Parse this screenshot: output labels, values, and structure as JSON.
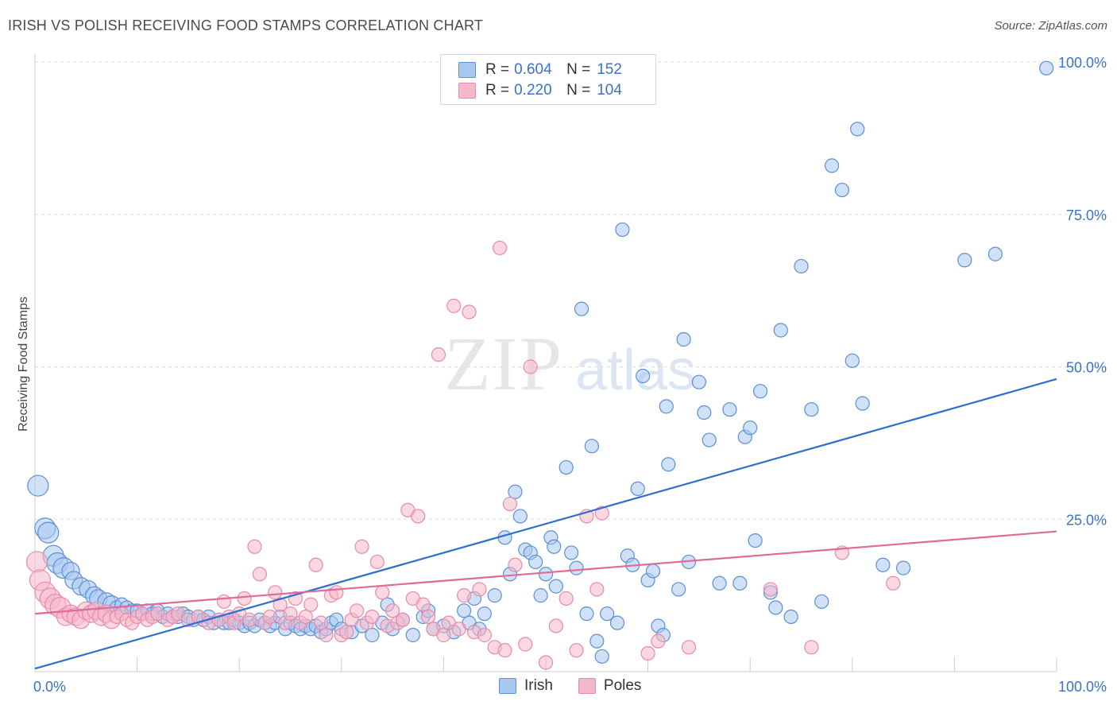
{
  "title": "IRISH VS POLISH RECEIVING FOOD STAMPS CORRELATION CHART",
  "source": "Source: ZipAtlas.com",
  "colors": {
    "irish_fill": "#a9c8f0",
    "irish_stroke": "#5b8fd6",
    "irish_line": "#2c6fd0",
    "poles_fill": "#f5b8cb",
    "poles_stroke": "#e88aa8",
    "poles_line": "#e06a98",
    "grid": "#dddddd",
    "tick_label": "#3a72c8"
  },
  "legend": {
    "rows": [
      {
        "r_label": "R =",
        "r_value": "0.604",
        "n_label": "N =",
        "n_value": "152"
      },
      {
        "r_label": "R =",
        "r_value": "0.220",
        "n_label": "N =",
        "n_value": "104"
      }
    ]
  },
  "chart_data": {
    "type": "scatter",
    "title": "IRISH VS POLISH RECEIVING FOOD STAMPS CORRELATION CHART",
    "xlabel": "",
    "ylabel": "Receiving Food Stamps",
    "xlim": [
      0,
      100
    ],
    "ylim": [
      0,
      100
    ],
    "x_tick_labels": [
      "0.0%",
      "100.0%"
    ],
    "y_tick_labels": [
      "25.0%",
      "50.0%",
      "75.0%",
      "100.0%"
    ],
    "y_ticks": [
      25,
      50,
      75,
      100
    ],
    "grid": true,
    "legend_position": "top-center",
    "series": [
      {
        "name": "Irish",
        "trend": {
          "x": [
            0,
            100
          ],
          "y": [
            0.5,
            48
          ]
        },
        "points": [
          [
            0.3,
            30.5
          ],
          [
            1,
            23.5
          ],
          [
            1.3,
            22.8
          ],
          [
            1.8,
            19
          ],
          [
            2.2,
            17.8
          ],
          [
            2.8,
            17
          ],
          [
            3.5,
            16.5
          ],
          [
            3.8,
            15
          ],
          [
            4.5,
            14
          ],
          [
            5.2,
            13.5
          ],
          [
            5.8,
            12.5
          ],
          [
            6.2,
            12
          ],
          [
            7,
            11.5
          ],
          [
            7.5,
            11
          ],
          [
            8,
            10.5
          ],
          [
            8.5,
            11
          ],
          [
            9,
            10.5
          ],
          [
            9.5,
            10
          ],
          [
            10,
            10
          ],
          [
            10.5,
            9.5
          ],
          [
            11,
            10
          ],
          [
            11.5,
            9.5
          ],
          [
            12,
            10
          ],
          [
            12.5,
            9
          ],
          [
            13,
            9.5
          ],
          [
            13.5,
            9
          ],
          [
            14,
            9
          ],
          [
            14.5,
            9.5
          ],
          [
            15,
            9
          ],
          [
            15.5,
            8.5
          ],
          [
            16,
            9
          ],
          [
            16.5,
            8.5
          ],
          [
            17,
            9
          ],
          [
            17.5,
            8
          ],
          [
            18,
            8.5
          ],
          [
            18.5,
            8
          ],
          [
            19,
            8
          ],
          [
            19.5,
            8.5
          ],
          [
            20,
            8
          ],
          [
            20.5,
            7.5
          ],
          [
            21,
            8
          ],
          [
            21.5,
            7.5
          ],
          [
            22,
            8.5
          ],
          [
            22.5,
            8
          ],
          [
            23,
            7.5
          ],
          [
            23.5,
            8
          ],
          [
            24,
            9
          ],
          [
            24.5,
            7
          ],
          [
            25,
            8
          ],
          [
            25.5,
            7.5
          ],
          [
            26,
            7
          ],
          [
            26.5,
            7.5
          ],
          [
            27,
            7
          ],
          [
            27.5,
            7.5
          ],
          [
            28,
            6.5
          ],
          [
            28.5,
            7
          ],
          [
            29,
            8
          ],
          [
            29.5,
            8.5
          ],
          [
            30,
            7
          ],
          [
            31,
            6.5
          ],
          [
            32,
            7.5
          ],
          [
            33,
            6
          ],
          [
            34,
            8
          ],
          [
            34.5,
            11
          ],
          [
            35,
            7
          ],
          [
            36,
            8.5
          ],
          [
            37,
            6
          ],
          [
            38,
            9
          ],
          [
            38.5,
            10
          ],
          [
            39,
            7
          ],
          [
            40,
            7.5
          ],
          [
            41,
            6.5
          ],
          [
            42,
            10
          ],
          [
            42.5,
            8
          ],
          [
            43,
            12
          ],
          [
            43.5,
            7
          ],
          [
            44,
            9.5
          ],
          [
            45,
            12.5
          ],
          [
            46,
            22
          ],
          [
            46.5,
            16
          ],
          [
            47,
            29.5
          ],
          [
            47.5,
            25.5
          ],
          [
            48,
            20
          ],
          [
            48.5,
            19.5
          ],
          [
            49,
            18
          ],
          [
            49.5,
            12.5
          ],
          [
            50,
            16
          ],
          [
            50.5,
            22
          ],
          [
            50.8,
            20.5
          ],
          [
            51,
            14
          ],
          [
            52,
            33.5
          ],
          [
            52.5,
            19.5
          ],
          [
            53,
            17
          ],
          [
            53.5,
            59.5
          ],
          [
            54,
            9.5
          ],
          [
            54.5,
            37
          ],
          [
            55,
            5
          ],
          [
            55.5,
            2.5
          ],
          [
            56,
            9.5
          ],
          [
            57,
            8
          ],
          [
            57.5,
            72.5
          ],
          [
            58,
            19
          ],
          [
            58.5,
            17.5
          ],
          [
            59,
            30
          ],
          [
            59.5,
            48.5
          ],
          [
            60,
            15
          ],
          [
            60.5,
            16.5
          ],
          [
            61,
            7.5
          ],
          [
            61.5,
            6
          ],
          [
            61.8,
            43.5
          ],
          [
            62,
            34
          ],
          [
            63,
            13.5
          ],
          [
            63.5,
            54.5
          ],
          [
            64,
            18
          ],
          [
            65,
            47.5
          ],
          [
            65.5,
            42.5
          ],
          [
            66,
            38
          ],
          [
            67,
            14.5
          ],
          [
            68,
            43
          ],
          [
            69,
            14.5
          ],
          [
            69.5,
            38.5
          ],
          [
            70,
            40
          ],
          [
            70.5,
            21.5
          ],
          [
            71,
            46
          ],
          [
            72,
            13
          ],
          [
            72.5,
            10.5
          ],
          [
            73,
            56
          ],
          [
            74,
            9
          ],
          [
            75,
            66.5
          ],
          [
            76,
            43
          ],
          [
            77,
            11.5
          ],
          [
            78,
            83
          ],
          [
            79,
            79
          ],
          [
            80,
            51
          ],
          [
            80.5,
            89
          ],
          [
            81,
            44
          ],
          [
            83,
            17.5
          ],
          [
            85,
            17
          ],
          [
            91,
            67.5
          ],
          [
            94,
            68.5
          ],
          [
            99,
            99
          ]
        ]
      },
      {
        "name": "Poles",
        "trend": {
          "x": [
            0,
            100
          ],
          "y": [
            9.5,
            23
          ]
        },
        "points": [
          [
            0.2,
            18
          ],
          [
            0.5,
            15
          ],
          [
            1,
            13
          ],
          [
            1.5,
            12
          ],
          [
            2,
            11
          ],
          [
            2.5,
            10.5
          ],
          [
            3,
            9
          ],
          [
            3.5,
            9.5
          ],
          [
            4,
            9
          ],
          [
            4.5,
            8.5
          ],
          [
            5,
            10
          ],
          [
            5.5,
            9.5
          ],
          [
            6,
            10
          ],
          [
            6.5,
            9
          ],
          [
            7,
            9.5
          ],
          [
            7.5,
            8.5
          ],
          [
            8,
            9
          ],
          [
            8.5,
            9.5
          ],
          [
            9,
            8.5
          ],
          [
            9.5,
            8
          ],
          [
            10,
            9
          ],
          [
            10.5,
            9.5
          ],
          [
            11,
            8.5
          ],
          [
            11.5,
            9
          ],
          [
            12,
            9.5
          ],
          [
            13,
            8.5
          ],
          [
            13.5,
            9
          ],
          [
            14,
            9.5
          ],
          [
            15,
            8.5
          ],
          [
            16,
            9
          ],
          [
            17,
            8
          ],
          [
            18,
            8.5
          ],
          [
            18.5,
            11.5
          ],
          [
            19,
            9
          ],
          [
            19.5,
            8
          ],
          [
            20,
            9.5
          ],
          [
            20.5,
            12
          ],
          [
            21,
            8.5
          ],
          [
            21.5,
            20.5
          ],
          [
            22,
            16
          ],
          [
            22.5,
            8
          ],
          [
            23,
            9
          ],
          [
            23.5,
            13
          ],
          [
            24,
            11
          ],
          [
            24.5,
            8
          ],
          [
            25,
            9.5
          ],
          [
            25.5,
            12
          ],
          [
            26,
            8
          ],
          [
            26.5,
            9
          ],
          [
            27,
            11
          ],
          [
            27.5,
            17.5
          ],
          [
            28,
            8
          ],
          [
            28.5,
            6
          ],
          [
            29,
            12.5
          ],
          [
            29.5,
            13
          ],
          [
            30,
            6
          ],
          [
            30.5,
            6.5
          ],
          [
            31,
            8.5
          ],
          [
            31.5,
            10
          ],
          [
            32,
            20.5
          ],
          [
            32.5,
            8
          ],
          [
            33,
            9
          ],
          [
            33.5,
            18
          ],
          [
            34,
            13
          ],
          [
            34.5,
            7.5
          ],
          [
            35,
            10
          ],
          [
            35.5,
            8
          ],
          [
            36,
            8.5
          ],
          [
            36.5,
            26.5
          ],
          [
            37,
            12
          ],
          [
            37.5,
            25.5
          ],
          [
            38,
            11
          ],
          [
            38.5,
            9
          ],
          [
            39,
            7
          ],
          [
            39.5,
            52
          ],
          [
            40,
            6
          ],
          [
            40.5,
            8
          ],
          [
            41,
            60
          ],
          [
            41.5,
            7
          ],
          [
            42,
            12.5
          ],
          [
            42.5,
            59
          ],
          [
            43,
            6.5
          ],
          [
            43.5,
            13.5
          ],
          [
            44,
            6
          ],
          [
            45,
            4
          ],
          [
            45.5,
            69.5
          ],
          [
            46,
            3.5
          ],
          [
            46.5,
            27.5
          ],
          [
            47,
            17.5
          ],
          [
            48,
            4.5
          ],
          [
            48.5,
            50
          ],
          [
            50,
            1.5
          ],
          [
            51,
            7.5
          ],
          [
            52,
            12
          ],
          [
            53,
            3.5
          ],
          [
            54,
            25.5
          ],
          [
            55,
            13.5
          ],
          [
            55.5,
            26
          ],
          [
            60,
            3
          ],
          [
            61,
            5
          ],
          [
            64,
            4
          ],
          [
            72,
            13.5
          ],
          [
            76,
            4
          ],
          [
            79,
            19.5
          ],
          [
            84,
            14.5
          ]
        ]
      }
    ]
  },
  "bottom_legend": {
    "items": [
      "Irish",
      "Poles"
    ]
  }
}
